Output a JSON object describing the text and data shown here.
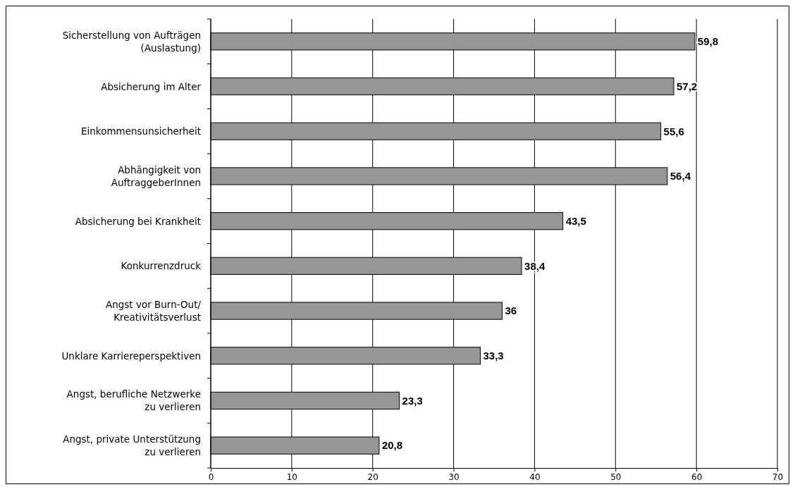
{
  "chart_data": {
    "type": "bar",
    "orientation": "horizontal",
    "categories": [
      "Sicherstellung von Aufträgen\n(Auslastung)",
      "Absicherung im Alter",
      "Einkommensunsicherheit",
      "Abhängigkeit von\nAuftraggeberInnen",
      "Absicherung bei Krankheit",
      "Konkurrenzdruck",
      "Angst vor Burn-Out/\nKreativitätsverlust",
      "Unklare Karriereperspektiven",
      "Angst, berufliche Netzwerke\nzu verlieren",
      "Angst, private Unterstützung\nzu verlieren"
    ],
    "values": [
      59.8,
      57.2,
      55.6,
      56.4,
      43.5,
      38.4,
      36,
      33.3,
      23.3,
      20.8
    ],
    "value_labels": [
      "59,8",
      "57,2",
      "55,6",
      "56,4",
      "43,5",
      "38,4",
      "36",
      "33,3",
      "23,3",
      "20,8"
    ],
    "color": "#969696",
    "xlim": [
      0,
      70
    ],
    "xticks": [
      0,
      10,
      20,
      30,
      40,
      50,
      60,
      70
    ],
    "grid": "x"
  }
}
